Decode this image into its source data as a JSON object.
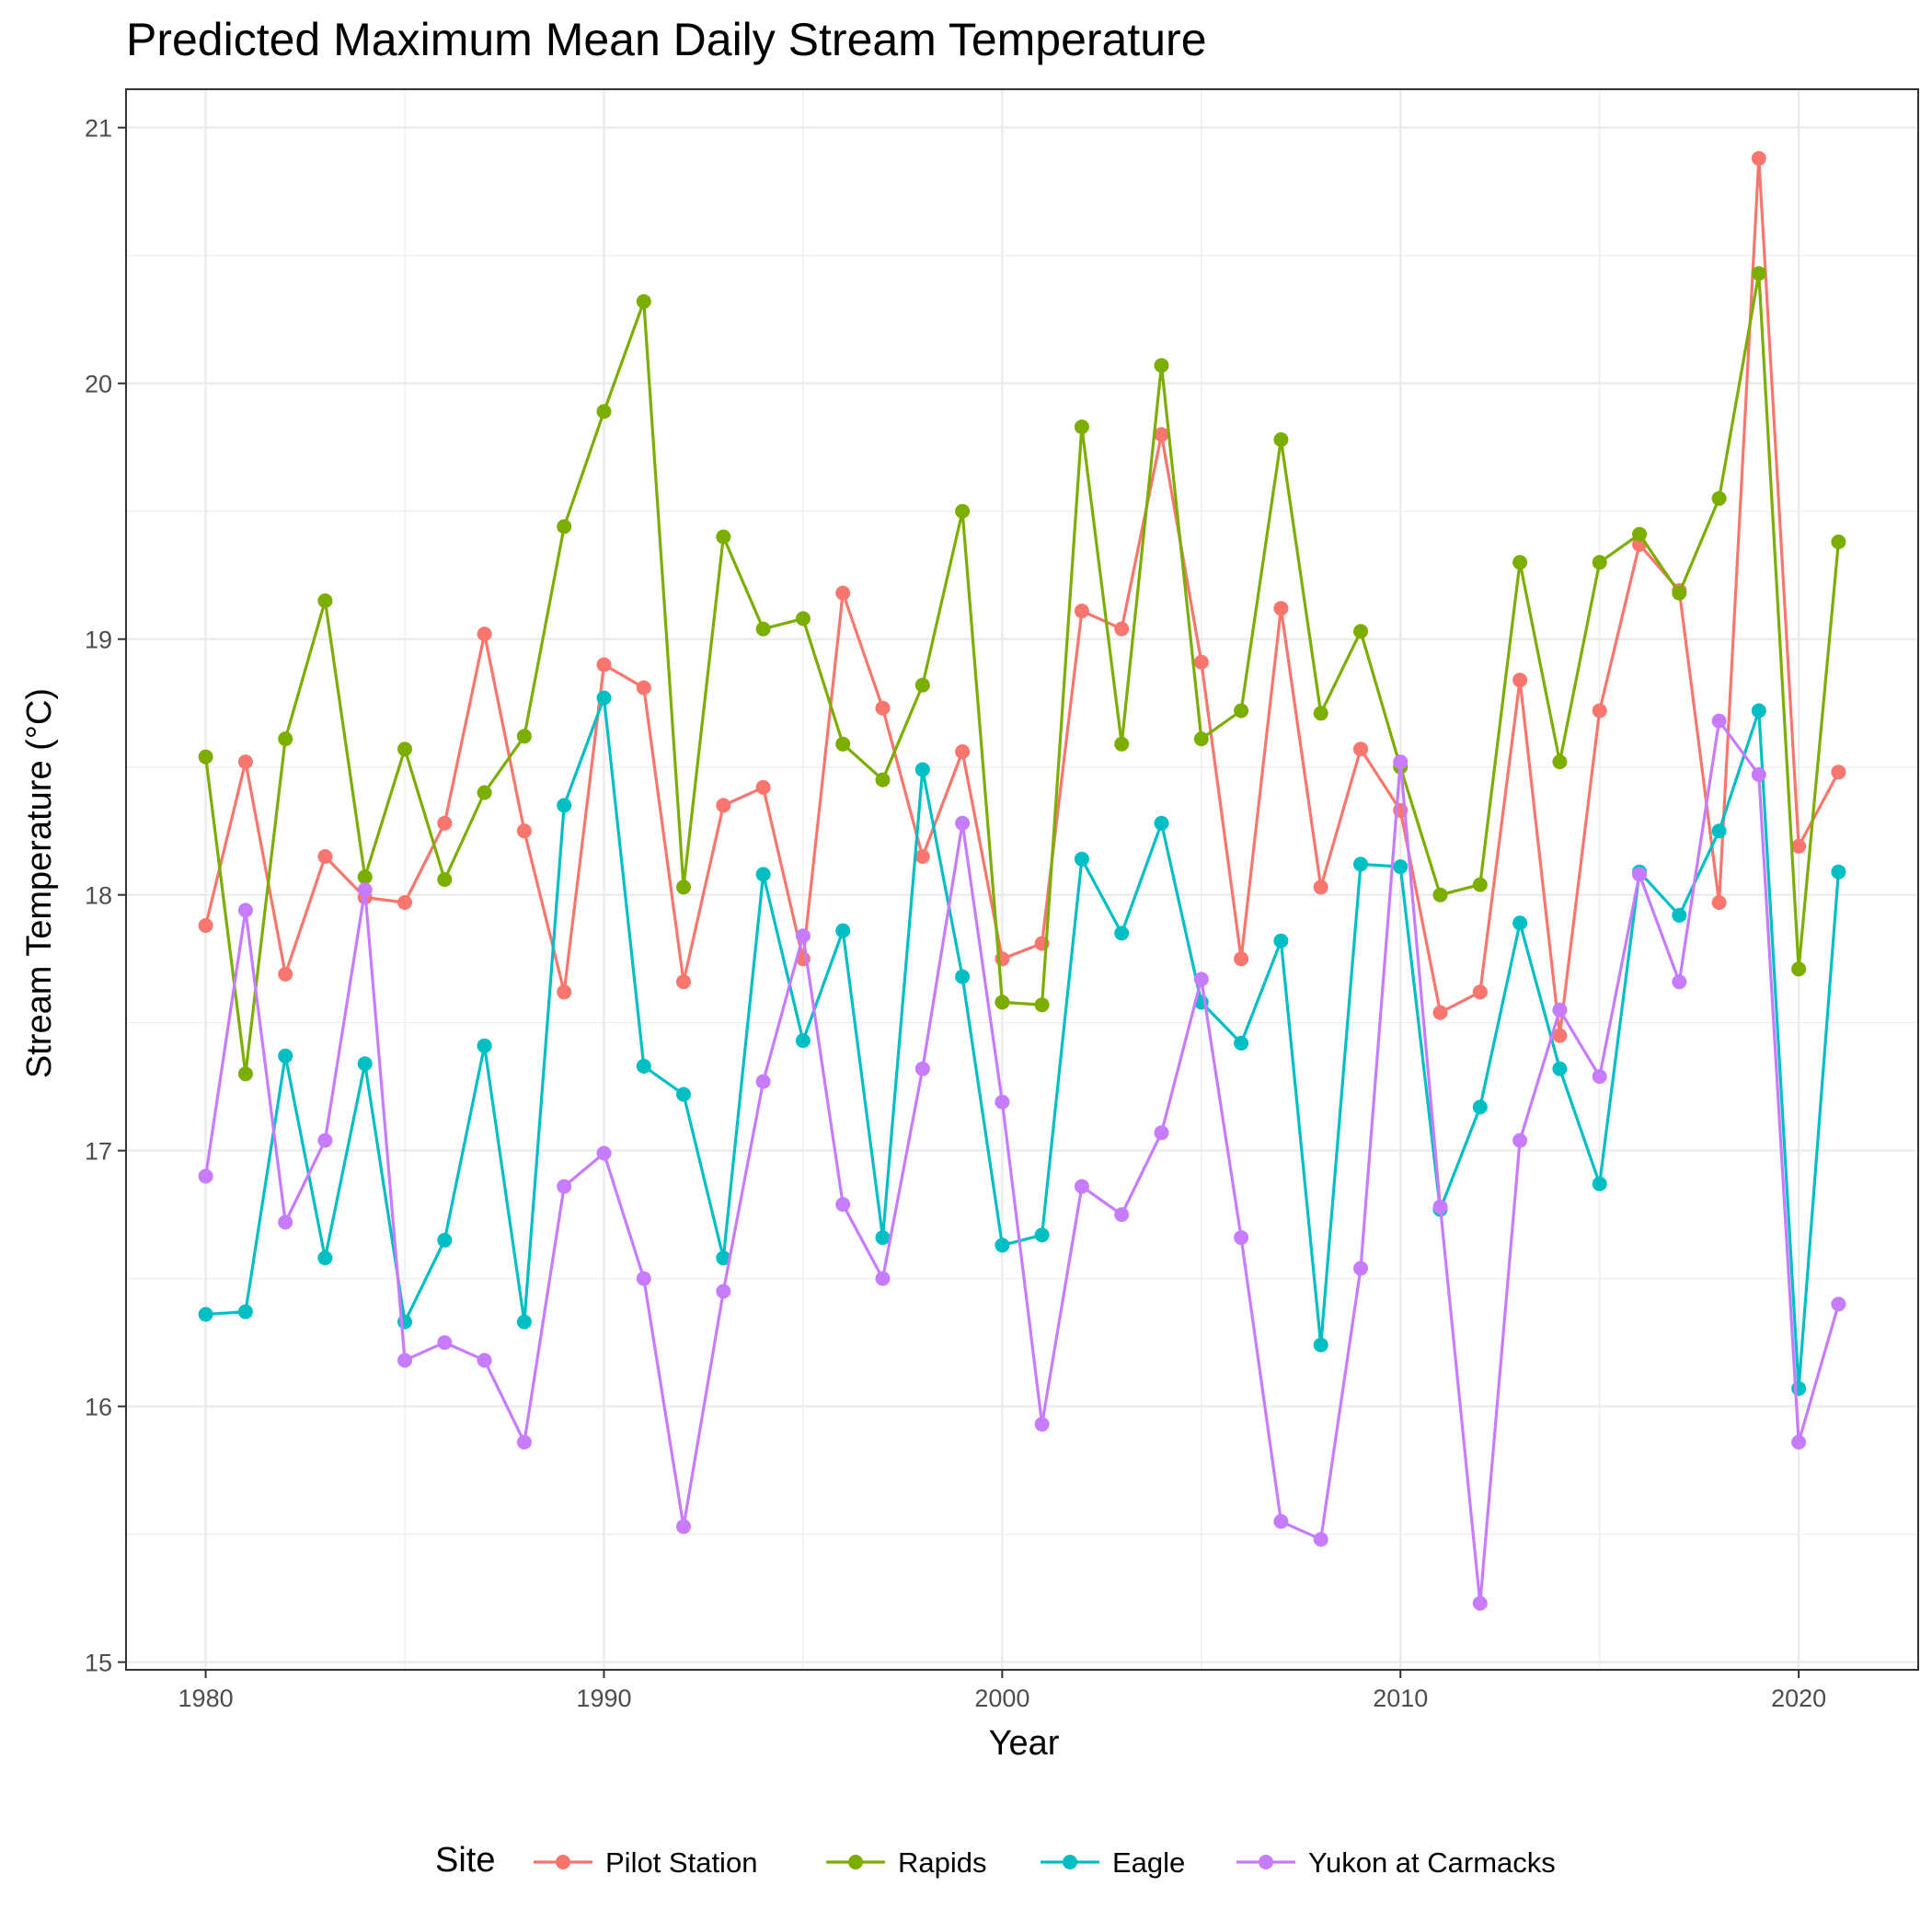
{
  "chart_data": {
    "type": "line",
    "title": "Predicted Maximum Mean Daily Stream Temperature",
    "xlabel": "Year",
    "ylabel": "Stream Temperature (°C)",
    "xlim": [
      1978,
      2023
    ],
    "ylim": [
      14.97,
      21.15
    ],
    "x_ticks": [
      1980,
      1990,
      2000,
      2010,
      2020
    ],
    "y_ticks": [
      15,
      16,
      17,
      18,
      19,
      20,
      21
    ],
    "grid": true,
    "legend_title": "Site",
    "legend_position": "bottom",
    "x": [
      1980,
      1981,
      1982,
      1983,
      1984,
      1985,
      1986,
      1987,
      1988,
      1989,
      1990,
      1991,
      1992,
      1993,
      1994,
      1995,
      1996,
      1997,
      1998,
      1999,
      2000,
      2001,
      2002,
      2003,
      2004,
      2005,
      2006,
      2007,
      2008,
      2009,
      2010,
      2011,
      2012,
      2013,
      2014,
      2015,
      2016,
      2017,
      2018,
      2019,
      2020,
      2021
    ],
    "series": [
      {
        "name": "Pilot Station",
        "color": "#F8766D",
        "values": [
          17.88,
          18.52,
          17.69,
          18.15,
          17.99,
          17.97,
          18.28,
          19.02,
          18.25,
          17.62,
          18.9,
          18.81,
          17.66,
          18.35,
          18.42,
          17.75,
          19.18,
          18.73,
          18.15,
          18.56,
          17.75,
          17.81,
          19.11,
          19.04,
          19.8,
          18.91,
          17.75,
          19.12,
          18.03,
          18.57,
          18.33,
          17.54,
          17.62,
          18.84,
          17.45,
          18.72,
          19.37,
          19.19,
          17.97,
          20.88,
          18.19,
          18.48
        ]
      },
      {
        "name": "Rapids",
        "color": "#7CAE00",
        "values": [
          18.54,
          17.3,
          18.61,
          19.15,
          18.07,
          18.57,
          18.06,
          18.4,
          18.62,
          19.44,
          19.89,
          20.32,
          18.03,
          19.4,
          19.04,
          19.08,
          18.59,
          18.45,
          18.82,
          19.5,
          17.58,
          17.57,
          19.83,
          18.59,
          20.07,
          18.61,
          18.72,
          19.78,
          18.71,
          19.03,
          18.5,
          18.0,
          18.04,
          19.3,
          18.52,
          19.3,
          19.41,
          19.18,
          19.55,
          20.43,
          17.71,
          19.38
        ]
      },
      {
        "name": "Eagle",
        "color": "#00BFC4",
        "values": [
          16.36,
          16.37,
          17.37,
          16.58,
          17.34,
          16.33,
          16.65,
          17.41,
          16.33,
          18.35,
          18.77,
          17.33,
          17.22,
          16.58,
          18.08,
          17.43,
          17.86,
          16.66,
          18.49,
          17.68,
          16.63,
          16.67,
          18.14,
          17.85,
          18.28,
          17.58,
          17.42,
          17.82,
          16.24,
          18.12,
          18.11,
          16.77,
          17.17,
          17.89,
          17.32,
          16.87,
          18.09,
          17.92,
          18.25,
          18.72,
          16.07,
          18.09
        ]
      },
      {
        "name": "Yukon at Carmacks",
        "color": "#C77CFF",
        "values": [
          16.9,
          17.94,
          16.72,
          17.04,
          18.02,
          16.18,
          16.25,
          16.18,
          15.86,
          16.86,
          16.99,
          16.5,
          15.53,
          16.45,
          17.27,
          17.84,
          16.79,
          16.5,
          17.32,
          18.28,
          17.19,
          15.93,
          16.86,
          16.75,
          17.07,
          17.67,
          16.66,
          15.55,
          15.48,
          16.54,
          18.52,
          16.78,
          15.23,
          17.04,
          17.55,
          17.29,
          18.08,
          17.66,
          18.68,
          18.47,
          15.86,
          16.4
        ]
      }
    ]
  }
}
